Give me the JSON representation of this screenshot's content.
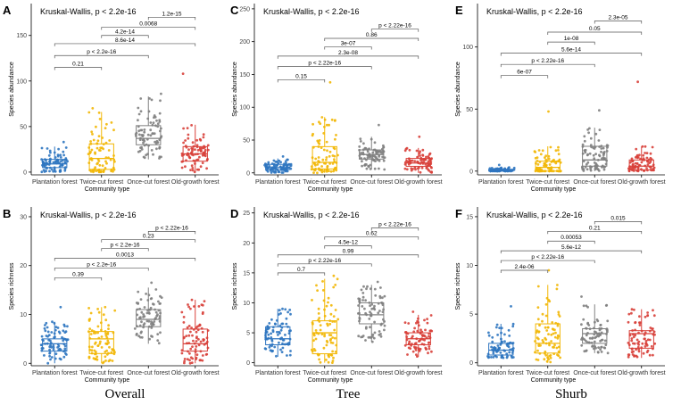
{
  "column_titles": [
    "Overall",
    "Tree",
    "Shurb"
  ],
  "colors": {
    "Plantation forest": "#2E75C0",
    "Twice-cut forest": "#F2B705",
    "Once-cut forest": "#808080",
    "Old-growth forest": "#D8403A"
  },
  "chart_data": [
    {
      "panel": "A",
      "type": "boxplot",
      "annotation": "Kruskal-Wallis, p < 2.2e-16",
      "xlabel": "Community type",
      "ylabel": "Species abundance",
      "categories": [
        "Plantation forest",
        "Twice-cut forest",
        "Once-cut forest",
        "Old-growth forest"
      ],
      "ylim": [
        -3,
        185
      ],
      "yticks": [
        0,
        50,
        100,
        150
      ],
      "boxes": [
        {
          "q1": 5,
          "median": 9,
          "q3": 14,
          "whisker_low": 0,
          "whisker_high": 28,
          "max_point": 33
        },
        {
          "q1": 3,
          "median": 15,
          "q3": 31,
          "whisker_low": 0,
          "whisker_high": 66,
          "max_point": 70
        },
        {
          "q1": 30,
          "median": 37,
          "q3": 51,
          "whisker_low": 14,
          "whisker_high": 83,
          "max_point": 86
        },
        {
          "q1": 12,
          "median": 20,
          "q3": 28,
          "whisker_low": 0,
          "whisker_high": 52,
          "max_point": 108
        }
      ],
      "comparisons": [
        {
          "groups": [
            1,
            2
          ],
          "label": "0.21",
          "y": 115
        },
        {
          "groups": [
            1,
            3
          ],
          "label": "p < 2.2e-16",
          "y": 128
        },
        {
          "groups": [
            1,
            4
          ],
          "label": "8.6e-14",
          "y": 141
        },
        {
          "groups": [
            2,
            3
          ],
          "label": "4.2e-14",
          "y": 150
        },
        {
          "groups": [
            2,
            4
          ],
          "label": "0.0068",
          "y": 159
        },
        {
          "groups": [
            3,
            4
          ],
          "label": "1.2e-15",
          "y": 170
        }
      ]
    },
    {
      "panel": "B",
      "type": "boxplot",
      "annotation": "Kruskal-Wallis, p < 2.2e-16",
      "xlabel": "Community type",
      "ylabel": "Species richness",
      "categories": [
        "Plantation forest",
        "Twice-cut forest",
        "Once-cut forest",
        "Old-growth forest"
      ],
      "ylim": [
        -0.5,
        32
      ],
      "yticks": [
        0,
        10,
        20,
        30
      ],
      "boxes": [
        {
          "q1": 2.5,
          "median": 4,
          "q3": 5,
          "whisker_low": 0,
          "whisker_high": 8.5,
          "max_point": 11.5
        },
        {
          "q1": 2,
          "median": 5,
          "q3": 6.5,
          "whisker_low": 0,
          "whisker_high": 11.5,
          "max_point": 11.5
        },
        {
          "q1": 7.5,
          "median": 9,
          "q3": 11,
          "whisker_low": 4,
          "whisker_high": 15.5,
          "max_point": 16.5
        },
        {
          "q1": 2.5,
          "median": 4,
          "q3": 7,
          "whisker_low": 0,
          "whisker_high": 13,
          "max_point": 13
        }
      ],
      "comparisons": [
        {
          "groups": [
            1,
            2
          ],
          "label": "0.39",
          "y": 17.5
        },
        {
          "groups": [
            1,
            3
          ],
          "label": "p < 2.2e-16",
          "y": 19.5
        },
        {
          "groups": [
            1,
            4
          ],
          "label": "0.0013",
          "y": 21.5
        },
        {
          "groups": [
            2,
            3
          ],
          "label": "p < 2.2e-16",
          "y": 23.5
        },
        {
          "groups": [
            2,
            4
          ],
          "label": "0.23",
          "y": 25.3
        },
        {
          "groups": [
            3,
            4
          ],
          "label": "p < 2.22e-16",
          "y": 27
        }
      ]
    },
    {
      "panel": "C",
      "type": "boxplot",
      "annotation": "Kruskal-Wallis, p < 2.2e-16",
      "xlabel": "Community type",
      "ylabel": "Species abundance",
      "categories": [
        "Plantation forest",
        "Twice-cut forest",
        "Once-cut forest",
        "Old-growth forest"
      ],
      "ylim": [
        -3,
        258
      ],
      "yticks": [
        0,
        50,
        100,
        150,
        200,
        250
      ],
      "boxes": [
        {
          "q1": 5,
          "median": 8,
          "q3": 13,
          "whisker_low": 0,
          "whisker_high": 22,
          "max_point": 25
        },
        {
          "q1": 6,
          "median": 16,
          "q3": 40,
          "whisker_low": 0,
          "whisker_high": 85,
          "max_point": 138
        },
        {
          "q1": 21,
          "median": 28,
          "q3": 35,
          "whisker_low": 5,
          "whisker_high": 55,
          "max_point": 73
        },
        {
          "q1": 10,
          "median": 15,
          "q3": 22,
          "whisker_low": 0,
          "whisker_high": 38,
          "max_point": 55
        }
      ],
      "comparisons": [
        {
          "groups": [
            1,
            2
          ],
          "label": "0.15",
          "y": 142
        },
        {
          "groups": [
            1,
            3
          ],
          "label": "p < 2.22e-16",
          "y": 162
        },
        {
          "groups": [
            1,
            4
          ],
          "label": "2.3e-08",
          "y": 178
        },
        {
          "groups": [
            2,
            3
          ],
          "label": "3e-07",
          "y": 192
        },
        {
          "groups": [
            2,
            4
          ],
          "label": "0.86",
          "y": 205
        },
        {
          "groups": [
            3,
            4
          ],
          "label": "p < 2.22e-16",
          "y": 219
        }
      ]
    },
    {
      "panel": "D",
      "type": "boxplot",
      "annotation": "Kruskal-Wallis, p < 2.2e-16",
      "xlabel": "Community type",
      "ylabel": "Species richness",
      "categories": [
        "Plantation forest",
        "Twice-cut forest",
        "Once-cut forest",
        "Old-growth forest"
      ],
      "ylim": [
        -0.5,
        26
      ],
      "yticks": [
        0,
        5,
        10,
        15,
        20,
        25
      ],
      "boxes": [
        {
          "q1": 3,
          "median": 4,
          "q3": 6,
          "whisker_low": 1,
          "whisker_high": 9,
          "max_point": 9
        },
        {
          "q1": 1.5,
          "median": 5,
          "q3": 7,
          "whisker_low": 0,
          "whisker_high": 14,
          "max_point": 14.5
        },
        {
          "q1": 6.5,
          "median": 8,
          "q3": 10,
          "whisker_low": 3.5,
          "whisker_high": 13,
          "max_point": 13.5
        },
        {
          "q1": 3,
          "median": 4,
          "q3": 5,
          "whisker_low": 1,
          "whisker_high": 8,
          "max_point": 8.5
        }
      ],
      "comparisons": [
        {
          "groups": [
            1,
            2
          ],
          "label": "0.7",
          "y": 15
        },
        {
          "groups": [
            1,
            3
          ],
          "label": "p < 2.22e-16",
          "y": 16.5
        },
        {
          "groups": [
            1,
            4
          ],
          "label": "0.99",
          "y": 18
        },
        {
          "groups": [
            2,
            3
          ],
          "label": "4.5e-12",
          "y": 19.5
        },
        {
          "groups": [
            2,
            4
          ],
          "label": "0.62",
          "y": 21
        },
        {
          "groups": [
            3,
            4
          ],
          "label": "p < 2.22e-16",
          "y": 22.5
        }
      ]
    },
    {
      "panel": "E",
      "type": "boxplot",
      "annotation": "Kruskal-Wallis, p < 2.2e-16",
      "xlabel": "Community type",
      "ylabel": "Species abundance",
      "categories": [
        "Plantation forest",
        "Twice-cut forest",
        "Once-cut forest",
        "Old-growth forest"
      ],
      "ylim": [
        -3,
        135
      ],
      "yticks": [
        0,
        50,
        100
      ],
      "boxes": [
        {
          "q1": 0,
          "median": 0.5,
          "q3": 1.5,
          "whisker_low": 0,
          "whisker_high": 3,
          "max_point": 5
        },
        {
          "q1": 0,
          "median": 3,
          "q3": 8,
          "whisker_low": 0,
          "whisker_high": 20,
          "max_point": 48
        },
        {
          "q1": 4,
          "median": 9,
          "q3": 20,
          "whisker_low": 0,
          "whisker_high": 35,
          "max_point": 49
        },
        {
          "q1": 1,
          "median": 4,
          "q3": 9,
          "whisker_low": 0,
          "whisker_high": 20,
          "max_point": 72
        }
      ],
      "comparisons": [
        {
          "groups": [
            1,
            2
          ],
          "label": "6e-07",
          "y": 77
        },
        {
          "groups": [
            1,
            3
          ],
          "label": "p < 2.22e-16",
          "y": 86
        },
        {
          "groups": [
            1,
            4
          ],
          "label": "5.6e-14",
          "y": 95
        },
        {
          "groups": [
            2,
            3
          ],
          "label": "1e-08",
          "y": 104
        },
        {
          "groups": [
            2,
            4
          ],
          "label": "0.05",
          "y": 112
        },
        {
          "groups": [
            3,
            4
          ],
          "label": "2.3e-05",
          "y": 121
        }
      ]
    },
    {
      "panel": "F",
      "type": "boxplot",
      "annotation": "Kruskal-Wallis, p < 2.2e-16",
      "xlabel": "Community type",
      "ylabel": "Species richness",
      "categories": [
        "Plantation forest",
        "Twice-cut forest",
        "Once-cut forest",
        "Old-growth forest"
      ],
      "ylim": [
        -0.3,
        16
      ],
      "yticks": [
        0,
        5,
        10,
        15
      ],
      "boxes": [
        {
          "q1": 0.8,
          "median": 1.3,
          "q3": 2,
          "whisker_low": 0.5,
          "whisker_high": 4,
          "max_point": 5.8
        },
        {
          "q1": 1,
          "median": 2,
          "q3": 4,
          "whisker_low": 0,
          "whisker_high": 8,
          "max_point": 9.5
        },
        {
          "q1": 2,
          "median": 3,
          "q3": 3.5,
          "whisker_low": 1,
          "whisker_high": 6,
          "max_point": 6.8
        },
        {
          "q1": 1.5,
          "median": 3,
          "q3": 3.3,
          "whisker_low": 0.5,
          "whisker_high": 5.5,
          "max_point": 5.5
        }
      ],
      "comparisons": [
        {
          "groups": [
            1,
            2
          ],
          "label": "2.4e-06",
          "y": 9.5
        },
        {
          "groups": [
            1,
            3
          ],
          "label": "p < 2.22e-16",
          "y": 10.5
        },
        {
          "groups": [
            1,
            4
          ],
          "label": "5.6e-12",
          "y": 11.5
        },
        {
          "groups": [
            2,
            3
          ],
          "label": "0.00053",
          "y": 12.5
        },
        {
          "groups": [
            2,
            4
          ],
          "label": "0.21",
          "y": 13.5
        },
        {
          "groups": [
            3,
            4
          ],
          "label": "0.015",
          "y": 14.5
        }
      ]
    }
  ]
}
